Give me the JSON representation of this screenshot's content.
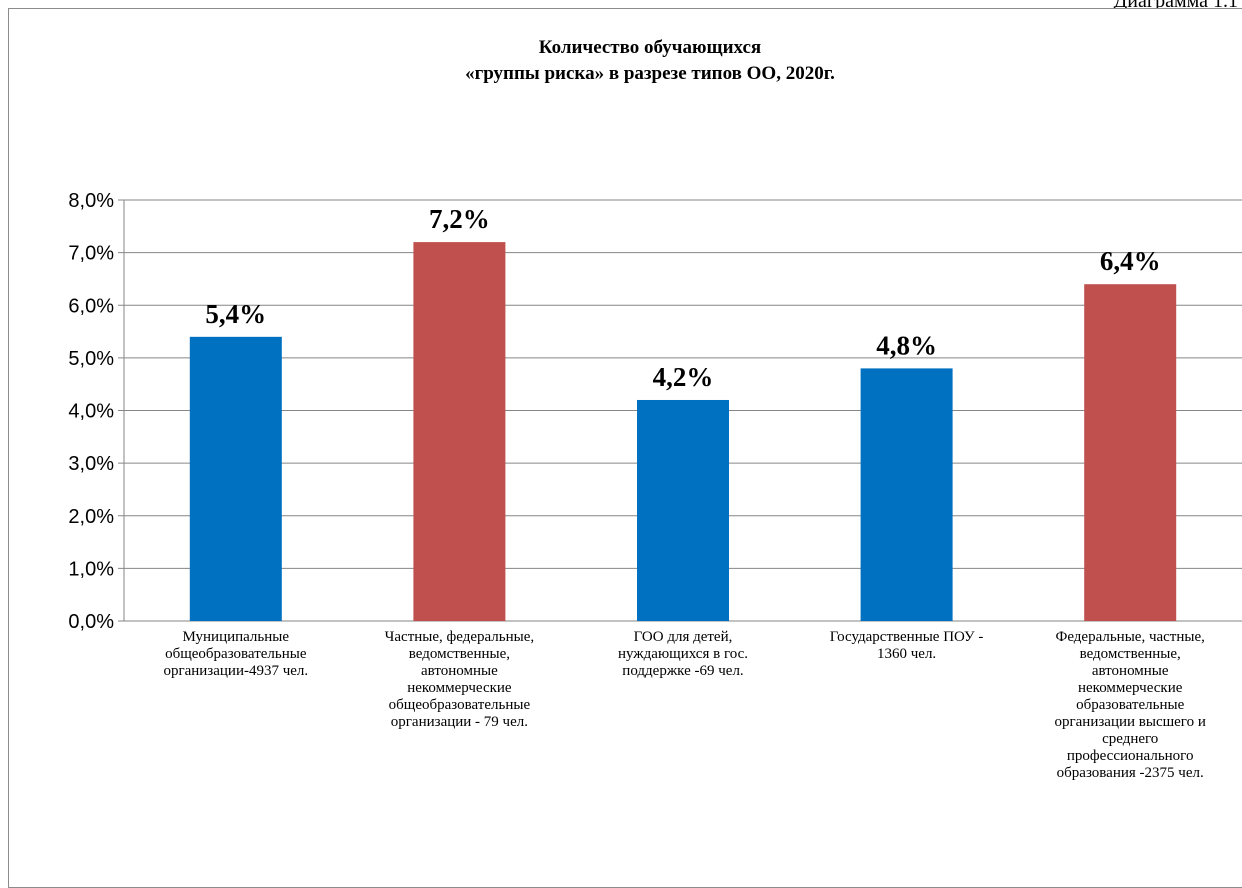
{
  "page_caption": "Диаграмма 1.1",
  "chart_data": {
    "type": "bar",
    "title_lines": [
      "Количество обучающихся",
      "«группы риска» в разрезе типов ОО, 2020г."
    ],
    "categories": [
      [
        "Муниципальные",
        "общеобразовательные",
        "организации-4937 чел."
      ],
      [
        "Частные, федеральные,",
        "ведомственные,",
        "автономные",
        "некоммерческие",
        "общеобразовательные",
        "организации - 79 чел."
      ],
      [
        "ГОО для детей,",
        "нуждающихся в гос.",
        "поддержке -69 чел."
      ],
      [
        "Государственные ПОУ -",
        "1360 чел."
      ],
      [
        "Федеральные, частные,",
        "ведомственные,",
        "автономные",
        "некоммерческие",
        "образовательные",
        "организации  высшего и",
        "среднего",
        "профессионального",
        "образования -2375 чел."
      ]
    ],
    "values": [
      5.4,
      7.2,
      4.2,
      4.8,
      6.4
    ],
    "data_labels": [
      "5,4%",
      "7,2%",
      "4,2%",
      "4,8%",
      "6,4%"
    ],
    "bar_colors": [
      "#0070c0",
      "#c0504d",
      "#0070c0",
      "#0070c0",
      "#c0504d"
    ],
    "ylim": [
      0,
      8
    ],
    "yticks": [
      0,
      1,
      2,
      3,
      4,
      5,
      6,
      7,
      8
    ],
    "ytick_labels": [
      "0,0%",
      "1,0%",
      "2,0%",
      "3,0%",
      "4,0%",
      "5,0%",
      "6,0%",
      "7,0%",
      "8,0%"
    ],
    "grid": true,
    "legend": "none"
  }
}
